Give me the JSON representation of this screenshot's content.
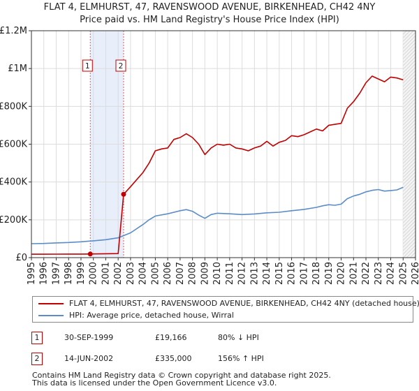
{
  "chart_data": {
    "type": "line",
    "title": "FLAT 4, ELMHURST, 47, RAVENSWOOD AVENUE, BIRKENHEAD, CH42 4NY",
    "subtitle": "Price paid vs. HM Land Registry's House Price Index (HPI)",
    "xlabel": "",
    "ylabel": "",
    "xlim": [
      1995,
      2026
    ],
    "ylim": [
      0,
      1200000
    ],
    "x_ticks": [
      "1995",
      "1996",
      "1997",
      "1998",
      "1999",
      "2000",
      "2001",
      "2002",
      "2003",
      "2004",
      "2005",
      "2006",
      "2007",
      "2008",
      "2009",
      "2010",
      "2011",
      "2012",
      "2013",
      "2014",
      "2015",
      "2016",
      "2017",
      "2018",
      "2019",
      "2020",
      "2021",
      "2022",
      "2023",
      "2024",
      "2025",
      "2026"
    ],
    "y_ticks": [
      {
        "value": 0,
        "label": "£0"
      },
      {
        "value": 200000,
        "label": "£200K"
      },
      {
        "value": 400000,
        "label": "£400K"
      },
      {
        "value": 600000,
        "label": "£600K"
      },
      {
        "value": 800000,
        "label": "£800K"
      },
      {
        "value": 1000000,
        "label": "£1M"
      },
      {
        "value": 1200000,
        "label": "£1.2M"
      }
    ],
    "series": [
      {
        "name": "FLAT 4, ELMHURST, 47, RAVENSWOOD AVENUE, BIRKENHEAD, CH42 4NY (detached house)",
        "color": "#c00000",
        "x": [
          1995,
          1996,
          1997,
          1998,
          1999,
          1999.75,
          2000,
          2001,
          2002,
          2002.44,
          2003,
          2004,
          2004.5,
          2005,
          2005.5,
          2006,
          2006.5,
          2007,
          2007.5,
          2008,
          2008.5,
          2009,
          2009.5,
          2010,
          2010.5,
          2011,
          2011.5,
          2012,
          2012.5,
          2013,
          2013.5,
          2014,
          2014.5,
          2015,
          2015.5,
          2016,
          2016.5,
          2017,
          2017.5,
          2018,
          2018.5,
          2019,
          2019.5,
          2020,
          2020.5,
          2021,
          2021.5,
          2022,
          2022.5,
          2023,
          2023.5,
          2024,
          2024.5,
          2025
        ],
        "values": [
          18000,
          18000,
          18500,
          19000,
          19000,
          19166,
          19500,
          20500,
          21500,
          335000,
          375000,
          450000,
          500000,
          565000,
          575000,
          580000,
          625000,
          635000,
          655000,
          635000,
          600000,
          545000,
          580000,
          600000,
          595000,
          600000,
          580000,
          575000,
          565000,
          580000,
          590000,
          615000,
          590000,
          610000,
          620000,
          645000,
          640000,
          650000,
          665000,
          680000,
          670000,
          700000,
          705000,
          710000,
          790000,
          825000,
          870000,
          925000,
          960000,
          945000,
          930000,
          955000,
          950000,
          940000
        ]
      },
      {
        "name": "HPI: Average price, detached house, Wirral",
        "color": "#5b8cc8",
        "x": [
          1995,
          1996,
          1997,
          1998,
          1999,
          2000,
          2001,
          2002,
          2003,
          2004,
          2004.5,
          2005,
          2006,
          2007,
          2007.5,
          2008,
          2008.5,
          2009,
          2009.5,
          2010,
          2011,
          2012,
          2013,
          2014,
          2015,
          2016,
          2017,
          2018,
          2018.5,
          2019,
          2019.5,
          2020,
          2020.5,
          2021,
          2021.5,
          2022,
          2022.5,
          2023,
          2023.5,
          2024,
          2024.5,
          2025
        ],
        "values": [
          74000,
          75000,
          78000,
          80000,
          84000,
          89000,
          95000,
          105000,
          131000,
          175000,
          200000,
          220000,
          232000,
          248000,
          254000,
          245000,
          225000,
          208000,
          228000,
          235000,
          232000,
          228000,
          231000,
          237000,
          240000,
          248000,
          255000,
          266000,
          274000,
          280000,
          277000,
          283000,
          312000,
          326000,
          335000,
          348000,
          356000,
          360000,
          352000,
          355000,
          358000,
          372000
        ]
      }
    ],
    "annotations": [
      {
        "label": "1",
        "x": 1999.75,
        "value": 19166
      },
      {
        "label": "2",
        "x": 2002.44,
        "value": 335000
      }
    ],
    "shaded_range": [
      1999.75,
      2002.44
    ]
  },
  "legend": {
    "red_label": "FLAT 4, ELMHURST, 47, RAVENSWOOD AVENUE, BIRKENHEAD, CH42 4NY (detached house)",
    "blue_label": "HPI: Average price, detached house, Wirral"
  },
  "transactions": [
    {
      "num": "1",
      "date": "30-SEP-1999",
      "price": "£19,166",
      "hpi": "80% ↓ HPI"
    },
    {
      "num": "2",
      "date": "14-JUN-2002",
      "price": "£335,000",
      "hpi": "156% ↑ HPI"
    }
  ],
  "footer": {
    "line1": "Contains HM Land Registry data © Crown copyright and database right 2025.",
    "line2": "This data is licensed under the Open Government Licence v3.0."
  }
}
